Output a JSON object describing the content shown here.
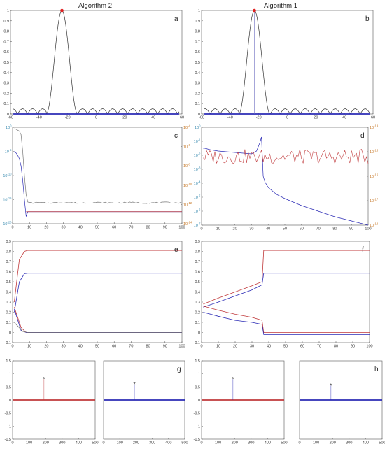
{
  "titles": {
    "left": "Algorithm 2",
    "right": "Algorithm 1"
  },
  "colors": {
    "blue": "#2b2bb5",
    "red": "#c0393b",
    "black": "#333333",
    "gray": "#777777",
    "cyan_tick": "#3a8bb0",
    "orange_tick": "#c77a2a"
  },
  "chart_data": [
    {
      "id": "a",
      "type": "line",
      "label": "a",
      "xlim": [
        -60,
        60
      ],
      "ylim": [
        0,
        1
      ],
      "xticks": [
        -60,
        -40,
        -20,
        0,
        20,
        40,
        60
      ],
      "yticks": [
        0,
        0.1,
        0.2,
        0.3,
        0.4,
        0.5,
        0.6,
        0.7,
        0.8,
        0.9,
        1
      ],
      "peak_x": -24,
      "series": [
        {
          "style": "black",
          "kind": "beam_pattern",
          "center": -24,
          "mainlobe_halfwidth": 11,
          "sidelobe_period": 7,
          "sidelobe_height": 0.05,
          "x_range": [
            -58,
            58
          ]
        },
        {
          "style": "blue",
          "kind": "baseline",
          "y": 0,
          "x_range": [
            -58,
            58
          ]
        },
        {
          "style": "gray",
          "kind": "vline",
          "x": -24
        },
        {
          "style": "red",
          "kind": "marker",
          "x": -24,
          "y": 1
        }
      ]
    },
    {
      "id": "b",
      "type": "line",
      "label": "b",
      "xlim": [
        -60,
        60
      ],
      "ylim": [
        0,
        1
      ],
      "xticks": [
        -60,
        -40,
        -20,
        0,
        20,
        40,
        60
      ],
      "yticks": [
        0,
        0.1,
        0.2,
        0.3,
        0.4,
        0.5,
        0.6,
        0.7,
        0.8,
        0.9,
        1
      ],
      "peak_x": -23,
      "series": [
        {
          "style": "black",
          "kind": "beam_pattern",
          "center": -23,
          "mainlobe_halfwidth": 11,
          "sidelobe_period": 7,
          "sidelobe_height": 0.05,
          "x_range": [
            -58,
            58
          ]
        },
        {
          "style": "blue",
          "kind": "baseline",
          "y": 0,
          "x_range": [
            -58,
            58
          ]
        },
        {
          "style": "gray",
          "kind": "vline",
          "x": -23
        },
        {
          "style": "red",
          "kind": "marker",
          "x": -23,
          "y": 1
        }
      ]
    },
    {
      "id": "c",
      "type": "line",
      "label": "c",
      "yscale": "log",
      "xlim": [
        0,
        100
      ],
      "ylim": [
        1e-20,
        1
      ],
      "xticks": [
        0,
        10,
        20,
        30,
        40,
        50,
        60,
        70,
        80,
        90,
        100
      ],
      "yticks_left": [
        "10^0",
        "10^-5",
        "10^-10",
        "10^-15",
        "10^-20"
      ],
      "y2lim": [
        1e-14,
        0.0001
      ],
      "yticks_right": [
        "10^-4",
        "10^-6",
        "10^-8",
        "10^-10",
        "10^-12",
        "10^-14"
      ],
      "series": [
        {
          "style": "gray",
          "axis": "left",
          "x": [
            1,
            2,
            3,
            4,
            5,
            6,
            7,
            8,
            9,
            10,
            12,
            15,
            20,
            30,
            40,
            50,
            60,
            70,
            80,
            90,
            100
          ],
          "y_exp": [
            -0.3,
            -0.4,
            -0.6,
            -0.8,
            -1.5,
            -5,
            -10,
            -14,
            -15.5,
            -15.6,
            -15.7,
            -15.6,
            -15.7,
            -15.6,
            -15.7,
            -15.6,
            -15.7,
            -15.6,
            -15.7,
            -15.6,
            -15.7
          ],
          "noisy_tail": true
        },
        {
          "style": "blue",
          "axis": "left",
          "x": [
            1,
            2,
            3,
            4,
            5,
            6,
            7,
            8,
            9,
            100
          ],
          "y_exp": [
            -5,
            -5.3,
            -5.8,
            -6.5,
            -8,
            -11,
            -15,
            -18.5,
            -17.5,
            -17.5
          ]
        },
        {
          "style": "red",
          "axis": "left",
          "x": [
            8,
            9,
            100
          ],
          "y_exp": [
            -17.5,
            -17.5,
            -17.5
          ]
        }
      ]
    },
    {
      "id": "d",
      "type": "line",
      "label": "d",
      "yscale": "log",
      "xlim": [
        0,
        100
      ],
      "ylim": [
        1e-07,
        1
      ],
      "xticks": [
        0,
        10,
        20,
        30,
        40,
        50,
        60,
        70,
        80,
        90,
        100
      ],
      "yticks_left": [
        "10^0",
        "10^-1",
        "10^-2",
        "10^-3",
        "10^-4",
        "10^-5",
        "10^-6",
        "10^-7"
      ],
      "y2lim": [
        1e-18,
        1e-14
      ],
      "yticks_right": [
        "10^-14",
        "10^-15",
        "10^-16",
        "10^-17",
        "10^-18"
      ],
      "series": [
        {
          "style": "blue",
          "axis": "left",
          "x": [
            1,
            2,
            5,
            10,
            20,
            30,
            33,
            35,
            36,
            37,
            38,
            40,
            45,
            50,
            60,
            70,
            80,
            90,
            100
          ],
          "y_exp": [
            -1.5,
            -1.5,
            -1.6,
            -1.7,
            -1.8,
            -1.9,
            -1.7,
            -1.1,
            -0.7,
            -3.5,
            -3.9,
            -4.3,
            -4.8,
            -5.1,
            -5.6,
            -6,
            -6.4,
            -6.7,
            -7
          ]
        },
        {
          "style": "red",
          "axis": "right",
          "kind": "noise",
          "x_range": [
            1,
            100
          ],
          "y_exp_mean": -15.2,
          "y_exp_amp": 0.3
        }
      ]
    },
    {
      "id": "e",
      "type": "line",
      "label": "e",
      "xlim": [
        0,
        100
      ],
      "ylim": [
        -0.1,
        0.9
      ],
      "xticks": [
        0,
        10,
        20,
        30,
        40,
        50,
        60,
        70,
        80,
        90,
        100
      ],
      "yticks": [
        -0.1,
        0,
        0.1,
        0.2,
        0.3,
        0.4,
        0.5,
        0.6,
        0.7,
        0.8,
        0.9
      ],
      "series": [
        {
          "style": "red",
          "x": [
            1,
            4,
            7,
            9,
            100
          ],
          "y": [
            0.3,
            0.72,
            0.8,
            0.81,
            0.81
          ]
        },
        {
          "style": "blue",
          "x": [
            1,
            4,
            7,
            9,
            100
          ],
          "y": [
            0.2,
            0.5,
            0.58,
            0.585,
            0.585
          ]
        },
        {
          "style": "red",
          "x": [
            1,
            5,
            8,
            100
          ],
          "y": [
            0.25,
            0.05,
            0.0,
            0.0
          ]
        },
        {
          "style": "blue",
          "x": [
            1,
            5,
            8,
            100
          ],
          "y": [
            0.23,
            0.02,
            0.0,
            0.0
          ]
        },
        {
          "style": "gray",
          "x": [
            1,
            6,
            9,
            100
          ],
          "y": [
            0.1,
            0.01,
            0.0,
            0.0
          ]
        }
      ]
    },
    {
      "id": "f",
      "type": "line",
      "label": "f",
      "xlim": [
        0,
        100
      ],
      "ylim": [
        -0.1,
        0.9
      ],
      "xticks": [
        0,
        10,
        20,
        30,
        40,
        50,
        60,
        70,
        80,
        90,
        100
      ],
      "yticks": [
        -0.1,
        0,
        0.1,
        0.2,
        0.3,
        0.4,
        0.5,
        0.6,
        0.7,
        0.8,
        0.9
      ],
      "series": [
        {
          "style": "red",
          "x": [
            1,
            10,
            20,
            30,
            36,
            37,
            100
          ],
          "y": [
            0.28,
            0.34,
            0.4,
            0.46,
            0.5,
            0.81,
            0.81
          ]
        },
        {
          "style": "blue",
          "x": [
            1,
            10,
            20,
            30,
            36,
            37,
            100
          ],
          "y": [
            0.25,
            0.3,
            0.36,
            0.42,
            0.47,
            0.585,
            0.585
          ]
        },
        {
          "style": "red",
          "x": [
            1,
            10,
            20,
            30,
            36,
            37,
            100
          ],
          "y": [
            0.26,
            0.22,
            0.18,
            0.15,
            0.12,
            0.0,
            0.0
          ]
        },
        {
          "style": "blue",
          "x": [
            1,
            10,
            20,
            30,
            36,
            37,
            100
          ],
          "y": [
            0.2,
            0.16,
            0.12,
            0.1,
            0.08,
            -0.02,
            -0.02
          ]
        }
      ]
    },
    {
      "id": "g_left",
      "type": "line",
      "label": "",
      "xlim": [
        0,
        500
      ],
      "ylim": [
        -1.5,
        1.5
      ],
      "xticks": [
        0,
        100,
        200,
        300,
        400,
        500
      ],
      "yticks": [
        -1.5,
        -1,
        -0.5,
        0,
        0.5,
        1,
        1.5
      ],
      "series": [
        {
          "style": "red",
          "kind": "baseline",
          "y": 0,
          "x_range": [
            0,
            512
          ]
        },
        {
          "style": "red",
          "kind": "stem",
          "x": 190,
          "y": 0.8
        }
      ]
    },
    {
      "id": "g_right",
      "type": "line",
      "label": "g",
      "xlim": [
        0,
        500
      ],
      "ylim": [
        -1.5,
        1.5
      ],
      "xticks": [
        0,
        100,
        200,
        300,
        400,
        500
      ],
      "yticks": [],
      "series": [
        {
          "style": "blue",
          "kind": "baseline",
          "y": 0,
          "x_range": [
            0,
            512
          ]
        },
        {
          "style": "blue",
          "kind": "stem",
          "x": 190,
          "y": 0.6
        }
      ]
    },
    {
      "id": "h_left",
      "type": "line",
      "label": "",
      "xlim": [
        0,
        500
      ],
      "ylim": [
        -1.5,
        1.5
      ],
      "xticks": [
        0,
        100,
        200,
        300,
        400,
        500
      ],
      "yticks": [
        -1.5,
        -1,
        -0.5,
        0,
        0.5,
        1,
        1.5
      ],
      "series": [
        {
          "style": "red",
          "kind": "baseline",
          "y": 0,
          "x_range": [
            0,
            512
          ]
        },
        {
          "style": "blue",
          "kind": "stem",
          "x": 190,
          "y": 0.8
        }
      ]
    },
    {
      "id": "h_right",
      "type": "line",
      "label": "h",
      "xlim": [
        0,
        500
      ],
      "ylim": [
        -1.5,
        1.5
      ],
      "xticks": [
        0,
        100,
        200,
        300,
        400,
        500
      ],
      "yticks": [],
      "series": [
        {
          "style": "blue",
          "kind": "baseline",
          "y": 0,
          "x_range": [
            0,
            512
          ]
        },
        {
          "style": "blue",
          "kind": "stem",
          "x": 190,
          "y": 0.55
        }
      ]
    }
  ]
}
